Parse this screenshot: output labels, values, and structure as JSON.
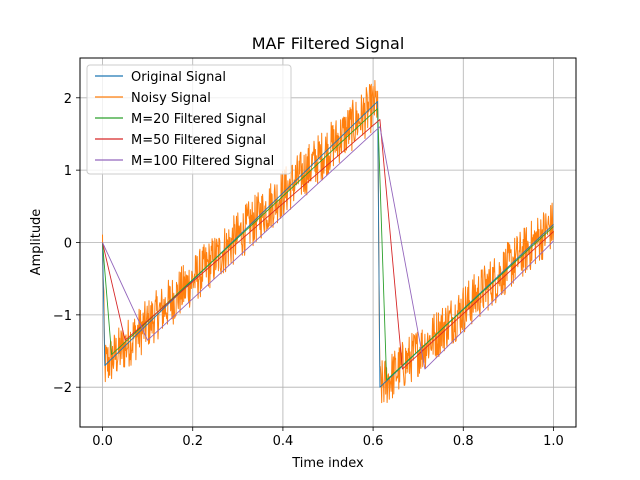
{
  "chart_data": {
    "type": "line",
    "title": "MAF Filtered Signal",
    "xlabel": "Time index",
    "ylabel": "Amplitude",
    "xlim": [
      -0.05,
      1.05
    ],
    "ylim": [
      -2.55,
      2.55
    ],
    "xticks": [
      0.0,
      0.2,
      0.4,
      0.6,
      0.8,
      1.0
    ],
    "xtick_labels": [
      "0.0",
      "0.2",
      "0.4",
      "0.6",
      "0.8",
      "1.0"
    ],
    "yticks": [
      -2,
      -1,
      0,
      1,
      2
    ],
    "ytick_labels": [
      "−2",
      "−1",
      "0",
      "1",
      "2"
    ],
    "grid": true,
    "legend_position": "top-left",
    "series": [
      {
        "name": "Original Signal",
        "color": "#1f77b4",
        "x": [
          0.0,
          0.005,
          0.61,
          0.615,
          1.0
        ],
        "y": [
          0.0,
          -1.7,
          1.95,
          -2.0,
          0.25
        ]
      },
      {
        "name": "Noisy Signal",
        "color": "#ff7f0e",
        "x": [
          0.0,
          0.005,
          0.61,
          0.615,
          1.0
        ],
        "y": [
          0.0,
          -1.7,
          1.95,
          -2.0,
          0.25
        ],
        "noise_amplitude": 0.35
      },
      {
        "name": "M=20 Filtered Signal",
        "color": "#2ca02c",
        "x": [
          0.0,
          0.02,
          0.61,
          0.63,
          1.0
        ],
        "y": [
          0.0,
          -1.55,
          1.85,
          -1.9,
          0.22
        ]
      },
      {
        "name": "M=50 Filtered Signal",
        "color": "#d62728",
        "x": [
          0.0,
          0.05,
          0.615,
          0.665,
          1.0
        ],
        "y": [
          0.0,
          -1.35,
          1.7,
          -1.75,
          0.15
        ]
      },
      {
        "name": "M=100 Filtered Signal",
        "color": "#9467bd",
        "x": [
          0.0,
          0.1,
          0.615,
          0.715,
          1.0
        ],
        "y": [
          0.0,
          -1.35,
          1.6,
          -1.75,
          0.02
        ]
      }
    ]
  }
}
